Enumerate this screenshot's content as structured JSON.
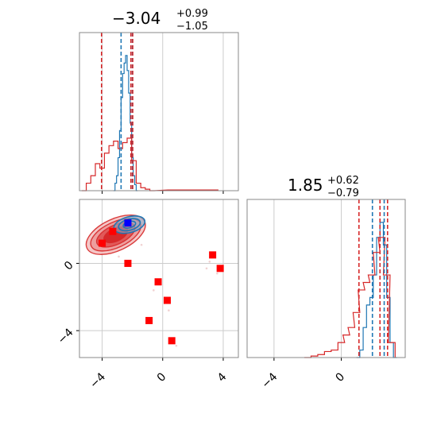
{
  "chart_data": {
    "type": "corner",
    "panels": [
      {
        "id": "hist-x",
        "type": "histogram",
        "title": {
          "median": "−3.04",
          "plus": "+0.99",
          "minus": "−1.05"
        },
        "xlim": [
          -5.5,
          5
        ],
        "xticks": [
          -4,
          0,
          4
        ],
        "grid": true,
        "series": [
          {
            "color": "#1f77b4",
            "bins_x": [
              -3.2,
              -3.1,
              -3.0,
              -2.9,
              -2.8,
              -2.7,
              -2.6,
              -2.5,
              -2.4,
              -2.3,
              -2.2,
              -2.1,
              -2.0,
              -1.9,
              -1.8,
              -1.7
            ],
            "heights": [
              0.0,
              0.05,
              0.1,
              0.22,
              0.4,
              0.62,
              0.78,
              0.85,
              0.9,
              0.8,
              0.65,
              0.45,
              0.22,
              0.1,
              0.04,
              0.0
            ]
          },
          {
            "color": "#d62728",
            "bins_x": [
              -5.2,
              -4.9,
              -4.6,
              -4.3,
              -4.0,
              -3.7,
              -3.4,
              -3.1,
              -2.8,
              -2.5,
              -2.2,
              -1.9,
              -1.6,
              -1.3,
              -1.0,
              -0.7,
              0.5,
              3.5
            ],
            "heights": [
              0.0,
              0.05,
              0.1,
              0.18,
              0.15,
              0.25,
              0.3,
              0.33,
              0.28,
              0.32,
              0.35,
              0.2,
              0.05,
              0.02,
              0.01,
              0.0,
              0.005,
              0.005
            ]
          }
        ],
        "quantile_lines": [
          {
            "x": -4.04,
            "color": "#d62728"
          },
          {
            "x": -2.75,
            "color": "#1f77b4"
          },
          {
            "x": -2.1,
            "color": "#d62728"
          },
          {
            "x": -2.0,
            "color": "#1f77b4"
          },
          {
            "x": -1.98,
            "color": "#d62728"
          }
        ]
      },
      {
        "id": "scatter-xy",
        "type": "contour-scatter",
        "xlim": [
          -5.5,
          5
        ],
        "ylim": [
          -5.6,
          3.8
        ],
        "xticks": [
          -4,
          0,
          4
        ],
        "yticks": [
          -4,
          0
        ],
        "grid": true,
        "points": [
          {
            "x": -3.3,
            "y": 1.9
          },
          {
            "x": -2.3,
            "y": 2.4
          },
          {
            "x": -4.0,
            "y": 1.2
          },
          {
            "x": -2.3,
            "y": 0.0
          },
          {
            "x": -0.3,
            "y": -1.1
          },
          {
            "x": 0.3,
            "y": -2.2
          },
          {
            "x": -0.9,
            "y": -3.4
          },
          {
            "x": 0.6,
            "y": -4.6
          },
          {
            "x": 3.3,
            "y": 0.5
          },
          {
            "x": 3.8,
            "y": -0.3
          }
        ],
        "best_point": {
          "x": -2.3,
          "y": 2.4
        }
      },
      {
        "id": "hist-y",
        "type": "histogram",
        "title": {
          "median": "1.85",
          "plus": "+0.62",
          "minus": "−0.79"
        },
        "xlim": [
          -5.6,
          3.8
        ],
        "xticks": [
          -4,
          0
        ],
        "grid": true,
        "series": [
          {
            "color": "#1f77b4",
            "bins_x": [
              1.0,
              1.2,
              1.4,
              1.6,
              1.8,
              2.0,
              2.2,
              2.4,
              2.6,
              2.8,
              3.0,
              3.2
            ],
            "heights": [
              0.0,
              0.05,
              0.2,
              0.35,
              0.4,
              0.55,
              0.8,
              0.9,
              0.75,
              0.4,
              0.1,
              0.0
            ]
          },
          {
            "color": "#d62728",
            "bins_x": [
              -2.0,
              -1.6,
              -1.2,
              -0.8,
              -0.4,
              0.0,
              0.3,
              0.6,
              0.9,
              1.2,
              1.5,
              1.8,
              2.1,
              2.4,
              2.7,
              3.0
            ],
            "heights": [
              0.0,
              0.01,
              0.02,
              0.04,
              0.05,
              0.1,
              0.15,
              0.2,
              0.3,
              0.45,
              0.5,
              0.55,
              0.7,
              0.8,
              0.55,
              0.1
            ]
          }
        ],
        "quantile_lines": [
          {
            "x": 1.05,
            "color": "#d62728"
          },
          {
            "x": 1.85,
            "color": "#1f77b4"
          },
          {
            "x": 2.3,
            "color": "#d62728"
          },
          {
            "x": 2.55,
            "color": "#1f77b4"
          },
          {
            "x": 2.75,
            "color": "#d62728"
          }
        ]
      }
    ],
    "colors": {
      "red": "#d62728",
      "blue": "#1f77b4",
      "best": "#0000ff"
    }
  }
}
